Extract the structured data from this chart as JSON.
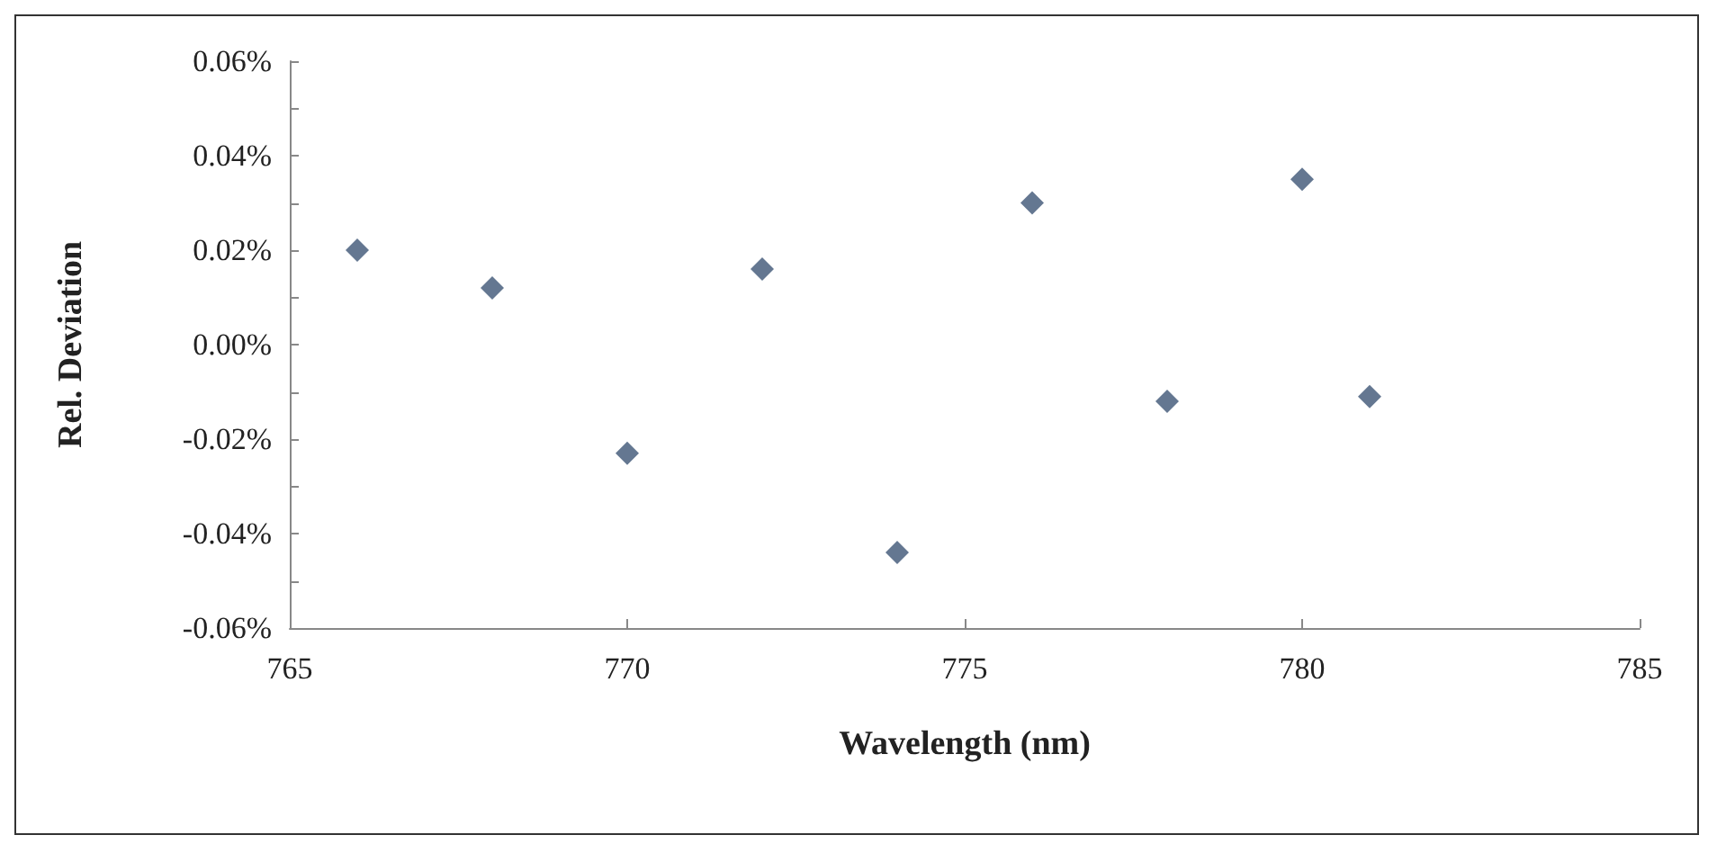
{
  "chart_data": {
    "type": "scatter",
    "xlabel": "Wavelength (nm)",
    "ylabel": "Rel. Deviation",
    "x": [
      766,
      768,
      770,
      772,
      774,
      776,
      778,
      780,
      781
    ],
    "series": [
      {
        "color": "#3d5575",
        "values": [
          0.02,
          0.012,
          -0.023,
          0.016,
          -0.044,
          0.03,
          -0.012,
          0.035,
          -0.011
        ]
      }
    ],
    "xlim": [
      765,
      785
    ],
    "xticks": [
      765,
      770,
      775,
      780,
      785
    ],
    "ylim": [
      -0.06,
      0.06
    ],
    "yticks": [
      {
        "value": -0.06,
        "label": "-0.06%"
      },
      {
        "value": -0.05,
        "label": null
      },
      {
        "value": -0.04,
        "label": "-0.04%"
      },
      {
        "value": -0.03,
        "label": null
      },
      {
        "value": -0.02,
        "label": "-0.02%"
      },
      {
        "value": -0.01,
        "label": null
      },
      {
        "value": 0,
        "label": "0.00%"
      },
      {
        "value": 0.01,
        "label": null
      },
      {
        "value": 0.02,
        "label": "0.02%"
      },
      {
        "value": 0.03,
        "label": null
      },
      {
        "value": 0.04,
        "label": "0.04%"
      },
      {
        "value": 0.05,
        "label": null
      },
      {
        "value": 0.06,
        "label": "0.06%"
      }
    ],
    "grid": false,
    "marker": "diamond"
  }
}
